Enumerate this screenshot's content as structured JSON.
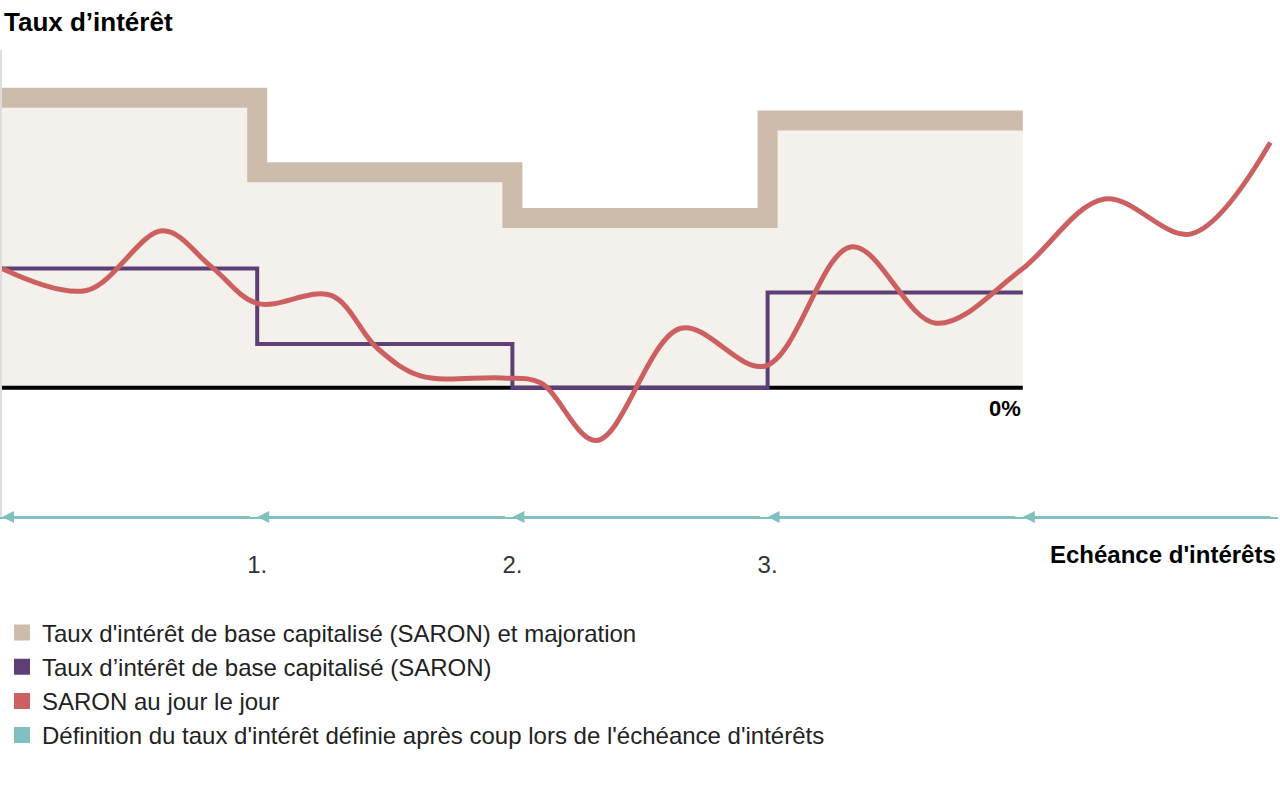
{
  "chart_data": {
    "type": "line",
    "y_label": "Taux d’intérêt",
    "x_label": "Echéance d'intérêts",
    "xlim": [
      0,
      5
    ],
    "xticks": [
      {
        "value": 1,
        "label": "1."
      },
      {
        "value": 2,
        "label": "2."
      },
      {
        "value": 3,
        "label": "3."
      }
    ],
    "ylim": [
      -1.3,
      3.4
    ],
    "yticks": [
      {
        "value": 0,
        "label": "0%"
      }
    ],
    "series": [
      {
        "name": "Taux d'intérêt de base capitalisé (SARON) et majoration",
        "color": "#cdbcab",
        "type": "step_area",
        "x": [
          0,
          1,
          2,
          3,
          4
        ],
        "values": [
          2.92,
          2.17,
          1.71,
          2.69,
          2.69
        ]
      },
      {
        "name": "Taux d’intérêt de base capitalisé (SARON)",
        "color": "#5e3f75",
        "type": "step",
        "x": [
          0,
          1,
          2,
          3,
          4
        ],
        "values": [
          1.2,
          0.44,
          0,
          0.96,
          0.96
        ]
      },
      {
        "name": "SARON au jour le jour",
        "color": "#cc5f5f",
        "type": "line",
        "x": [
          0,
          0.33,
          0.63,
          0.82,
          1.0,
          1.29,
          1.47,
          1.64,
          1.96,
          2.11,
          2.33,
          2.66,
          2.99,
          3.33,
          3.66,
          3.99,
          4.32,
          4.66,
          4.97
        ],
        "values": [
          1.2,
          0.98,
          1.58,
          1.22,
          0.85,
          0.93,
          0.4,
          0.12,
          0.1,
          0.05,
          -0.53,
          0.6,
          0.22,
          1.42,
          0.65,
          1.18,
          1.9,
          1.55,
          2.47
        ]
      },
      {
        "name": "Définition du taux d'intérêt définie après coup lors de l'échéance d'intérêts",
        "color": "#80c0bf",
        "type": "arrow",
        "x": [
          0,
          1,
          2,
          3,
          4
        ]
      }
    ]
  }
}
